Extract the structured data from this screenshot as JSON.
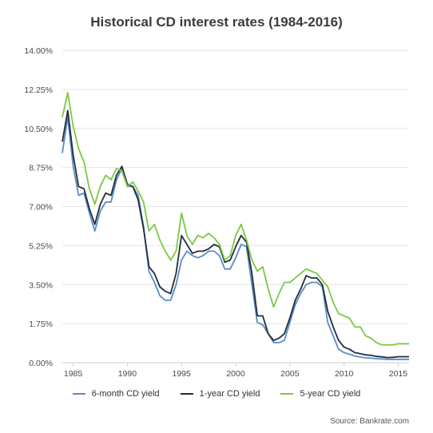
{
  "chart_data": {
    "type": "line",
    "title": "Historical CD interest rates (1984-2016)",
    "source": "Source: Bankrate.com",
    "x_range": [
      1984,
      2016
    ],
    "x_ticks": [
      1985,
      1990,
      1995,
      2000,
      2005,
      2010,
      2015
    ],
    "ylim": [
      0,
      14
    ],
    "y_ticks": [
      0,
      1.75,
      3.5,
      5.25,
      7,
      8.75,
      10.5,
      12.25,
      14
    ],
    "y_tick_labels": [
      "0.00%",
      "1.75%",
      "3.50%",
      "5.25%",
      "7.00%",
      "8.75%",
      "10.50%",
      "12.25%",
      "14.00%"
    ],
    "grid": "horizontal",
    "legend_position": "bottom",
    "series": [
      {
        "name": "6-month CD yield",
        "color": "#5b8bc9",
        "points": [
          [
            1984,
            9.4
          ],
          [
            1984.5,
            11.0
          ],
          [
            1985,
            8.8
          ],
          [
            1985.5,
            7.5
          ],
          [
            1986,
            7.6
          ],
          [
            1986.5,
            6.7
          ],
          [
            1987,
            5.9
          ],
          [
            1987.5,
            6.8
          ],
          [
            1988,
            7.2
          ],
          [
            1988.5,
            7.2
          ],
          [
            1989,
            8.2
          ],
          [
            1989.5,
            8.7
          ],
          [
            1990,
            7.9
          ],
          [
            1990.5,
            7.9
          ],
          [
            1991,
            7.5
          ],
          [
            1991.5,
            6.1
          ],
          [
            1992,
            4.1
          ],
          [
            1992.5,
            3.6
          ],
          [
            1993,
            3.0
          ],
          [
            1993.5,
            2.8
          ],
          [
            1994,
            2.8
          ],
          [
            1994.5,
            3.5
          ],
          [
            1995,
            4.6
          ],
          [
            1995.5,
            5.0
          ],
          [
            1996,
            4.8
          ],
          [
            1996.5,
            4.7
          ],
          [
            1997,
            4.8
          ],
          [
            1997.5,
            5.0
          ],
          [
            1998,
            5.0
          ],
          [
            1998.5,
            4.8
          ],
          [
            1999,
            4.2
          ],
          [
            1999.5,
            4.2
          ],
          [
            2000,
            4.7
          ],
          [
            2000.5,
            5.3
          ],
          [
            2001,
            5.2
          ],
          [
            2001.5,
            3.5
          ],
          [
            2002,
            1.8
          ],
          [
            2002.5,
            1.7
          ],
          [
            2003,
            1.3
          ],
          [
            2003.5,
            0.9
          ],
          [
            2004,
            0.9
          ],
          [
            2004.5,
            1.0
          ],
          [
            2005,
            1.8
          ],
          [
            2005.5,
            2.6
          ],
          [
            2006,
            3.1
          ],
          [
            2006.5,
            3.5
          ],
          [
            2007,
            3.6
          ],
          [
            2007.5,
            3.6
          ],
          [
            2008,
            3.4
          ],
          [
            2008.5,
            1.8
          ],
          [
            2009,
            1.2
          ],
          [
            2009.5,
            0.6
          ],
          [
            2010,
            0.45
          ],
          [
            2010.5,
            0.38
          ],
          [
            2011,
            0.3
          ],
          [
            2011.5,
            0.25
          ],
          [
            2012,
            0.22
          ],
          [
            2012.5,
            0.2
          ],
          [
            2013,
            0.18
          ],
          [
            2013.5,
            0.17
          ],
          [
            2014,
            0.15
          ],
          [
            2014.5,
            0.15
          ],
          [
            2015,
            0.15
          ],
          [
            2015.5,
            0.15
          ],
          [
            2016,
            0.15
          ]
        ]
      },
      {
        "name": "1-year CD yield",
        "color": "#232c3c",
        "points": [
          [
            1984,
            9.9
          ],
          [
            1984.5,
            11.3
          ],
          [
            1985,
            9.3
          ],
          [
            1985.5,
            7.9
          ],
          [
            1986,
            7.8
          ],
          [
            1986.5,
            6.9
          ],
          [
            1987,
            6.2
          ],
          [
            1987.5,
            7.1
          ],
          [
            1988,
            7.6
          ],
          [
            1988.5,
            7.5
          ],
          [
            1989,
            8.4
          ],
          [
            1989.5,
            8.8
          ],
          [
            1990,
            8.0
          ],
          [
            1990.5,
            7.9
          ],
          [
            1991,
            7.3
          ],
          [
            1991.5,
            6.0
          ],
          [
            1992,
            4.3
          ],
          [
            1992.5,
            4.0
          ],
          [
            1993,
            3.4
          ],
          [
            1993.5,
            3.2
          ],
          [
            1994,
            3.1
          ],
          [
            1994.5,
            4.0
          ],
          [
            1995,
            5.7
          ],
          [
            1995.5,
            5.3
          ],
          [
            1996,
            4.9
          ],
          [
            1996.5,
            5.0
          ],
          [
            1997,
            5.0
          ],
          [
            1997.5,
            5.1
          ],
          [
            1998,
            5.3
          ],
          [
            1998.5,
            5.2
          ],
          [
            1999,
            4.5
          ],
          [
            1999.5,
            4.6
          ],
          [
            2000,
            5.2
          ],
          [
            2000.5,
            5.7
          ],
          [
            2001,
            5.4
          ],
          [
            2001.5,
            4.0
          ],
          [
            2002,
            2.1
          ],
          [
            2002.5,
            2.1
          ],
          [
            2003,
            1.3
          ],
          [
            2003.5,
            1.0
          ],
          [
            2004,
            1.1
          ],
          [
            2004.5,
            1.3
          ],
          [
            2005,
            2.0
          ],
          [
            2005.5,
            2.8
          ],
          [
            2006,
            3.3
          ],
          [
            2006.5,
            3.9
          ],
          [
            2007,
            3.8
          ],
          [
            2007.5,
            3.8
          ],
          [
            2008,
            3.5
          ],
          [
            2008.5,
            2.3
          ],
          [
            2009,
            1.6
          ],
          [
            2009.5,
            1.0
          ],
          [
            2010,
            0.7
          ],
          [
            2010.5,
            0.6
          ],
          [
            2011,
            0.45
          ],
          [
            2011.5,
            0.4
          ],
          [
            2012,
            0.35
          ],
          [
            2012.5,
            0.33
          ],
          [
            2013,
            0.28
          ],
          [
            2013.5,
            0.26
          ],
          [
            2014,
            0.23
          ],
          [
            2014.5,
            0.24
          ],
          [
            2015,
            0.27
          ],
          [
            2015.5,
            0.27
          ],
          [
            2016,
            0.27
          ]
        ]
      },
      {
        "name": "5-year CD yield",
        "color": "#7ac943",
        "points": [
          [
            1984,
            11.0
          ],
          [
            1984.5,
            12.1
          ],
          [
            1985,
            10.6
          ],
          [
            1985.5,
            9.6
          ],
          [
            1986,
            9.0
          ],
          [
            1986.5,
            7.8
          ],
          [
            1987,
            7.1
          ],
          [
            1987.5,
            7.9
          ],
          [
            1988,
            8.4
          ],
          [
            1988.5,
            8.2
          ],
          [
            1989,
            8.7
          ],
          [
            1989.5,
            8.6
          ],
          [
            1990,
            7.9
          ],
          [
            1990.5,
            8.1
          ],
          [
            1991,
            7.7
          ],
          [
            1991.5,
            7.2
          ],
          [
            1992,
            5.9
          ],
          [
            1992.5,
            6.2
          ],
          [
            1993,
            5.5
          ],
          [
            1993.5,
            5.0
          ],
          [
            1994,
            4.6
          ],
          [
            1994.5,
            5.0
          ],
          [
            1995,
            6.7
          ],
          [
            1995.5,
            5.7
          ],
          [
            1996,
            5.3
          ],
          [
            1996.5,
            5.7
          ],
          [
            1997,
            5.6
          ],
          [
            1997.5,
            5.8
          ],
          [
            1998,
            5.6
          ],
          [
            1998.5,
            5.3
          ],
          [
            1999,
            4.6
          ],
          [
            1999.5,
            4.8
          ],
          [
            2000,
            5.7
          ],
          [
            2000.5,
            6.2
          ],
          [
            2001,
            5.5
          ],
          [
            2001.5,
            4.6
          ],
          [
            2002,
            4.1
          ],
          [
            2002.5,
            4.3
          ],
          [
            2003,
            3.3
          ],
          [
            2003.5,
            2.5
          ],
          [
            2004,
            3.1
          ],
          [
            2004.5,
            3.6
          ],
          [
            2005,
            3.6
          ],
          [
            2005.5,
            3.8
          ],
          [
            2006,
            4.0
          ],
          [
            2006.5,
            4.2
          ],
          [
            2007,
            4.1
          ],
          [
            2007.5,
            4.0
          ],
          [
            2008,
            3.7
          ],
          [
            2008.5,
            3.4
          ],
          [
            2009,
            2.7
          ],
          [
            2009.5,
            2.2
          ],
          [
            2010,
            2.1
          ],
          [
            2010.5,
            2.0
          ],
          [
            2011,
            1.6
          ],
          [
            2011.5,
            1.6
          ],
          [
            2012,
            1.2
          ],
          [
            2012.5,
            1.1
          ],
          [
            2013,
            0.9
          ],
          [
            2013.5,
            0.8
          ],
          [
            2014,
            0.8
          ],
          [
            2014.5,
            0.8
          ],
          [
            2015,
            0.85
          ],
          [
            2015.5,
            0.85
          ],
          [
            2016,
            0.85
          ]
        ]
      }
    ]
  }
}
